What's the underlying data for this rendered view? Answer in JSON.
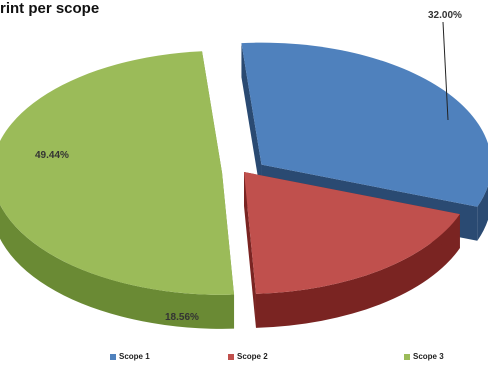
{
  "chart_data": {
    "type": "pie",
    "title": "rint per scope",
    "series": [
      {
        "name": "Scope 1",
        "value": 32.0,
        "label": "32.00%",
        "color": "#4f81bd",
        "side_color": "#2a4a72",
        "exploded": true
      },
      {
        "name": "Scope 2",
        "value": 18.56,
        "label": "18.56%",
        "color": "#c0504d",
        "side_color": "#7a2422",
        "exploded": false
      },
      {
        "name": "Scope 3",
        "value": 49.44,
        "label": "49.44%",
        "color": "#9bbb59",
        "side_color": "#6a8a34",
        "exploded": true
      }
    ],
    "legend_position": "bottom",
    "three_d": true
  }
}
